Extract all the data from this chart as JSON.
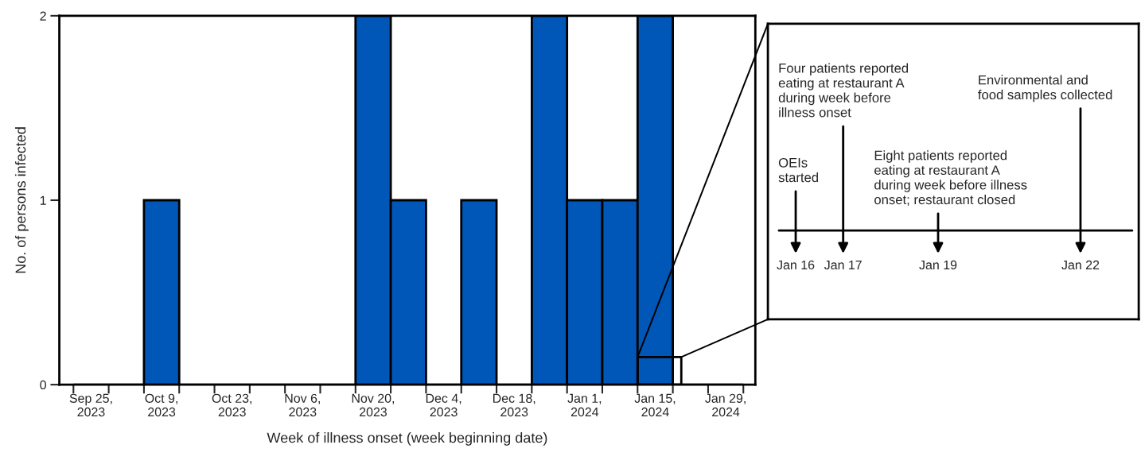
{
  "chart_data": [
    {
      "type": "bar",
      "xlabel": "Week of illness onset (week beginning date)",
      "ylabel": "No. of persons infected",
      "categories": [
        "Sep 25,\n2023",
        null,
        "Oct 9,\n2023",
        null,
        "Oct 23,\n2023",
        null,
        "Nov 6,\n2023",
        null,
        "Nov 20,\n2023",
        null,
        "Dec 4,\n2023",
        null,
        "Dec 18,\n2023",
        null,
        "Jan 1,\n2024",
        null,
        "Jan 15,\n2024",
        null,
        "Jan 29,\n2024"
      ],
      "values": [
        0,
        0,
        1,
        0,
        0,
        0,
        0,
        0,
        2,
        1,
        0,
        1,
        0,
        2,
        1,
        1,
        2,
        0,
        0
      ],
      "color": "#0057b8",
      "ylim": [
        0,
        2
      ],
      "yticks": [
        0,
        1,
        2
      ],
      "grid": false,
      "legend": false
    },
    {
      "type": "other",
      "categories": [
        "Jan 16",
        "Jan 17",
        "Jan 19",
        "Jan 22"
      ],
      "annotations": [
        "OEIs\nstarted",
        "Four patients reported\neating at restaurant A\nduring week before\nillness onset",
        "Eight patients reported\neating at restaurant A\nduring week before illness\nonset; restaurant closed",
        "Environmental and\nfood samples collected"
      ]
    }
  ]
}
